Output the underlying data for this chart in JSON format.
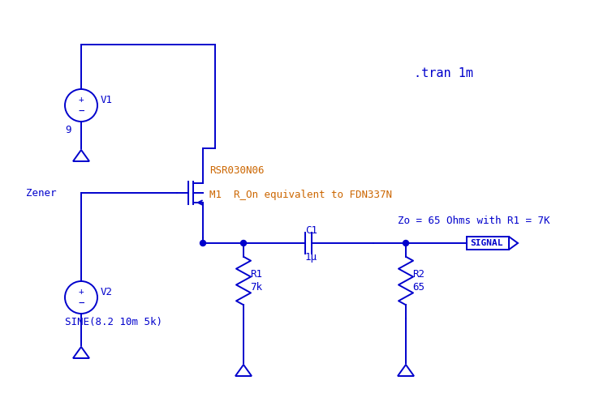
{
  "bg_color": "#ffffff",
  "line_color": "#0000cc",
  "text_color": "#0000cc",
  "orange_color": "#cc6600",
  "fig_width": 7.54,
  "fig_height": 5.01,
  "dpi": 100,
  "title_text": ".tran 1m",
  "annotation_text": "Zo = 65 Ohms with R1 = 7K",
  "mosfet_part": "RSR030N06",
  "mosfet_label": "M1  R_On equivalent to FDN337N",
  "zener_label": "Zener",
  "v1_label": "V1",
  "v1_val": "9",
  "v2_label": "V2",
  "v2_val": "SINE(8.2 10m 5k)",
  "r1_label": "R1",
  "r1_val": "7k",
  "r2_label": "R2",
  "r2_val": "65",
  "c1_label": "C1",
  "c1_val": "1μ",
  "signal_label": "SIGNAL"
}
